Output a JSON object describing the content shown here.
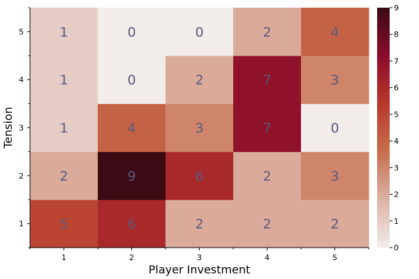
{
  "chart_data": {
    "type": "heatmap",
    "title": "",
    "xlabel": "Player Investment",
    "ylabel": "Tension",
    "x_categories": [
      "1",
      "2",
      "3",
      "4",
      "5"
    ],
    "y_categories": [
      "1",
      "2",
      "3",
      "4",
      "5"
    ],
    "values": [
      [
        5,
        6,
        2,
        2,
        2
      ],
      [
        2,
        9,
        6,
        2,
        3
      ],
      [
        1,
        4,
        3,
        7,
        0
      ],
      [
        1,
        0,
        2,
        7,
        3
      ],
      [
        1,
        0,
        0,
        2,
        4
      ]
    ],
    "values_orientation": "rows indexed by Tension from 1 (bottom) to 5 (top); columns by Player Investment 1 to 5",
    "colorbar": {
      "min": 0,
      "max": 9,
      "ticks": [
        "0",
        "1",
        "2",
        "3",
        "4",
        "5",
        "6",
        "7",
        "8",
        "9"
      ],
      "colormap": [
        "#f2eceb",
        "#dcb2a5",
        "#c76e4c",
        "#b8382c",
        "#8a0c2a",
        "#3b0a15"
      ]
    }
  }
}
